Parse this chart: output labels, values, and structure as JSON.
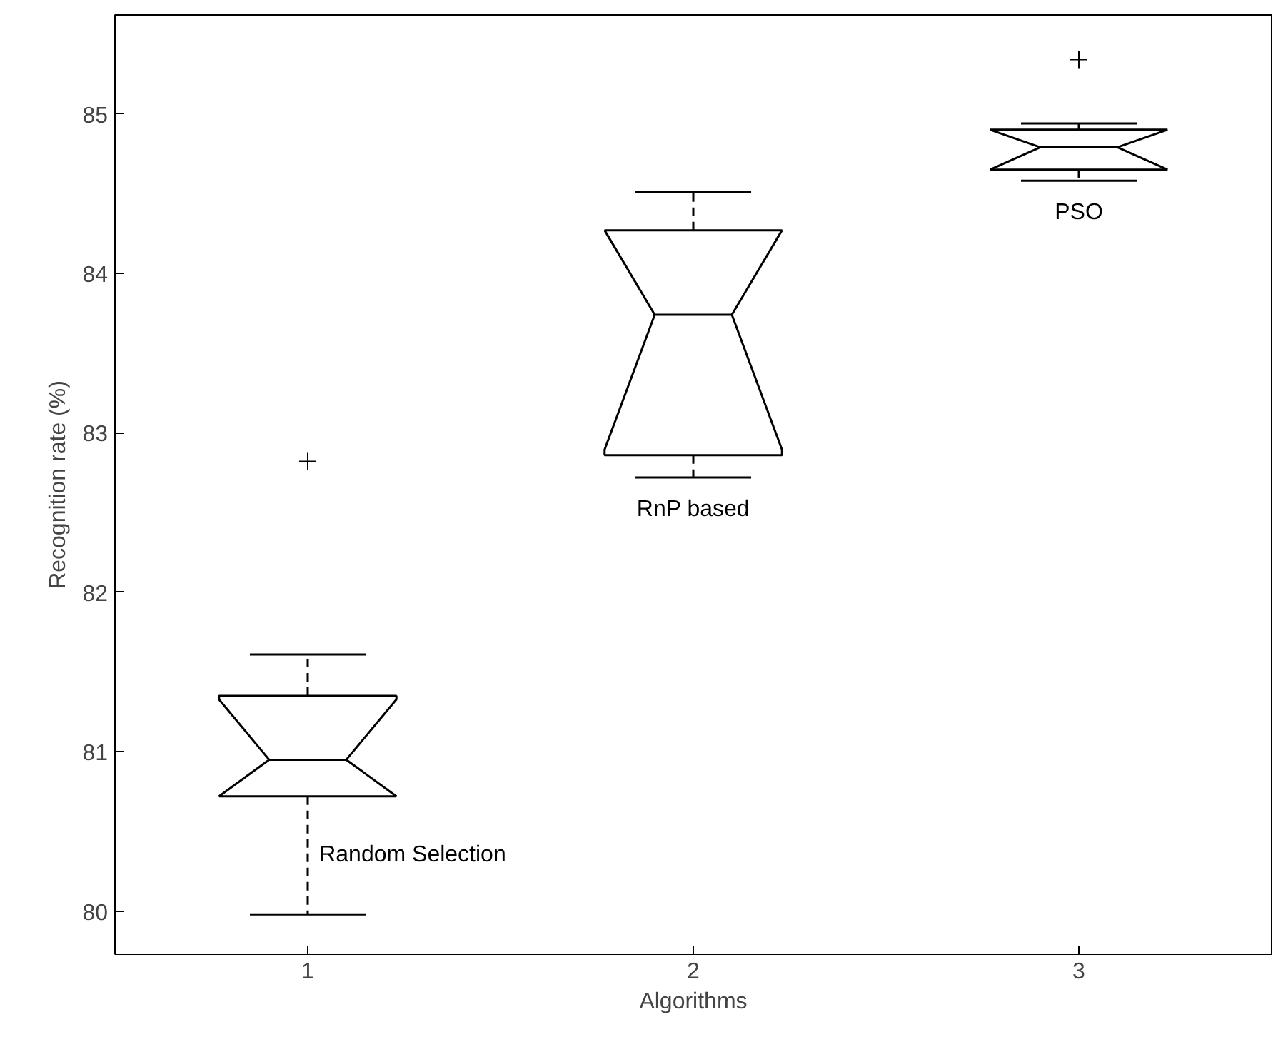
{
  "chart_data": {
    "type": "box",
    "xlabel": "Algorithms",
    "ylabel": "Recognition rate (%)",
    "categories": [
      "1",
      "2",
      "3"
    ],
    "color": "#000000",
    "boxes": [
      {
        "low": 79.98,
        "q1": 80.72,
        "median": 80.95,
        "q3": 81.35,
        "high": 81.61,
        "outliers": [
          82.82
        ]
      },
      {
        "low": 82.72,
        "q1": 82.86,
        "median": 83.74,
        "q3": 84.27,
        "high": 84.51
      },
      {
        "low": 84.58,
        "q1": 84.65,
        "median": 84.79,
        "q3": 84.9,
        "high": 84.94,
        "outliers": [
          85.34
        ]
      }
    ],
    "ylim": [
      79.73,
      85.62
    ],
    "yticks": [
      80,
      81,
      82,
      83,
      84,
      85
    ],
    "grid": false,
    "annotations": [
      "Random Selection",
      "RnP based",
      "PSO"
    ]
  }
}
